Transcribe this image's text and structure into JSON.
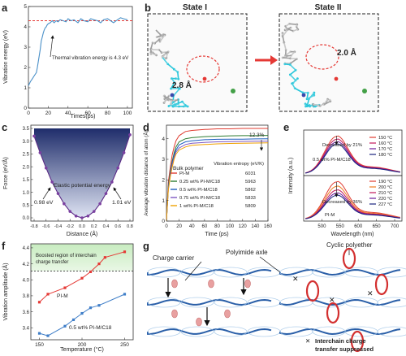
{
  "panels": {
    "a": {
      "label": "a",
      "ylabel": "Vibration energy (eV)",
      "xlabel": "Times(ps)",
      "xticks": [
        "0",
        "20",
        "40",
        "60",
        "80",
        "100"
      ],
      "yticks": [
        "0",
        "1",
        "2",
        "3",
        "4",
        "5"
      ],
      "annotation": "Thermal vibration energy is 4.3 eV"
    },
    "b": {
      "label": "b",
      "state1": "State I",
      "state2": "State II",
      "dist1": "2.8 Å",
      "dist2": "2.0 Å"
    },
    "c": {
      "label": "c",
      "ylabel": "Force (eV/Å)",
      "xlabel": "Distance (Å)",
      "xticks": [
        "-0.8",
        "-0.6",
        "-0.4",
        "-0.2",
        "0.0",
        "0.2",
        "0.4",
        "0.6",
        "0.8"
      ],
      "yticks": [
        "0.0",
        "0.5",
        "1.0",
        "1.5",
        "2.0",
        "2.5",
        "3.0",
        "3.5"
      ],
      "center_label": "Elastic potential energy",
      "left_label": "0.98 eV",
      "right_label": "1.01 eV"
    },
    "d": {
      "label": "d",
      "ylabel": "Average vibration distance of atom (Å)",
      "xlabel": "Time (ps)",
      "xticks": [
        "0",
        "20",
        "40",
        "60",
        "80",
        "100",
        "120",
        "140",
        "160"
      ],
      "yticks": [
        "0",
        "1",
        "2",
        "3",
        "4"
      ],
      "percent": "12.3%",
      "bulk_label": "Bulk polymer",
      "entropy_label": "Vibration entropy (eV/K)",
      "legend": [
        {
          "name": "PI-M",
          "value": "6031",
          "color": "#e03c31"
        },
        {
          "name": "0.25 wt% PI-M/C18",
          "value": "5963",
          "color": "#2e7d32"
        },
        {
          "name": "0.5 wt% PI-M/C18",
          "value": "5862",
          "color": "#1f5fbf"
        },
        {
          "name": "0.75 wt% PI-M/C18",
          "value": "5833",
          "color": "#7e57c2"
        },
        {
          "name": "1 wt% PI-M/C18",
          "value": "5809",
          "color": "#f0a202"
        }
      ]
    },
    "e": {
      "label": "e",
      "ylabel": "Intensity (a.u.)",
      "xlabel": "Wavelength (nm)",
      "xticks": [
        "500",
        "550",
        "600",
        "650",
        "700"
      ],
      "top_note": "Decreased by 21%",
      "top_sample": "0.5 wt% PI-M/C18",
      "top_legend": [
        {
          "name": "150 °C",
          "color": "#e03c31"
        },
        {
          "name": "160 °C",
          "color": "#c2185b"
        },
        {
          "name": "170 °C",
          "color": "#6a1b9a"
        },
        {
          "name": "180 °C",
          "color": "#1a237e"
        }
      ],
      "bottom_note": "Decreased by 36%",
      "bottom_sample": "PI-M",
      "bottom_legend": [
        {
          "name": "190 °C",
          "color": "#e03c31"
        },
        {
          "name": "200 °C",
          "color": "#f07b20"
        },
        {
          "name": "210 °C",
          "color": "#c2185b"
        },
        {
          "name": "220 °C",
          "color": "#6a1b9a"
        },
        {
          "name": "227 °C",
          "color": "#1a237e"
        }
      ]
    },
    "f": {
      "label": "f",
      "ylabel": "Vibration amplitude (Å)",
      "xlabel": "Temperature (°C)",
      "xticks": [
        "150",
        "200",
        "250"
      ],
      "yticks": [
        "3.4",
        "3.6",
        "3.8",
        "4.0",
        "4.2",
        "4.4"
      ],
      "boost_label_1": "Boosted region of interchain",
      "boost_label_2": "charge transfer",
      "series1": "PI-M",
      "series2": "0.5 wt% PI-M/C18"
    },
    "g": {
      "label": "g",
      "charge_carrier": "Charge carrier",
      "axle": "Polyimide axle",
      "polyether": "Cyclic polyether",
      "suppressed_1": "Interchain charge",
      "suppressed_2": "transfer suppressed"
    }
  },
  "chart_data": [
    {
      "type": "line",
      "panel": "a",
      "xlabel": "Times(ps)",
      "ylabel": "Vibration energy (eV)",
      "xlim": [
        0,
        105
      ],
      "ylim": [
        0,
        5
      ],
      "hline": 4.3,
      "series": [
        {
          "name": "",
          "x": [
            0,
            2,
            4,
            6,
            8,
            9,
            10,
            11,
            12,
            13,
            14,
            15,
            16,
            17,
            18,
            19,
            20,
            22,
            24,
            26,
            28,
            30,
            32,
            35,
            38,
            40,
            43,
            46,
            50,
            53,
            56,
            60,
            63,
            66,
            70,
            73,
            76,
            80,
            83,
            86,
            90,
            93,
            96,
            100
          ],
          "y": [
            1.1,
            1.3,
            1.45,
            1.6,
            1.75,
            2.0,
            2.3,
            2.6,
            2.9,
            3.3,
            3.5,
            3.7,
            3.85,
            3.95,
            4.0,
            4.1,
            4.15,
            4.2,
            4.3,
            4.2,
            4.3,
            4.25,
            4.35,
            4.3,
            4.25,
            4.4,
            4.3,
            4.35,
            4.2,
            4.4,
            4.3,
            4.25,
            4.4,
            4.35,
            4.3,
            4.2,
            4.35,
            4.4,
            4.3,
            4.2,
            4.35,
            4.45,
            4.4,
            4.35
          ]
        }
      ]
    },
    {
      "type": "line",
      "panel": "c",
      "xlabel": "Distance (Å)",
      "ylabel": "Force (eV/Å)",
      "xlim": [
        -0.8,
        0.8
      ],
      "ylim": [
        0,
        3.5
      ],
      "series": [
        {
          "name": "",
          "x": [
            -0.8,
            -0.7,
            -0.6,
            -0.5,
            -0.4,
            -0.3,
            -0.2,
            -0.1,
            0.0,
            0.1,
            0.2,
            0.3,
            0.4,
            0.5,
            0.6,
            0.7,
            0.8
          ],
          "y": [
            3.2,
            2.55,
            1.95,
            1.4,
            0.95,
            0.55,
            0.25,
            0.07,
            0.0,
            0.07,
            0.25,
            0.55,
            0.95,
            1.4,
            1.95,
            2.55,
            3.25
          ]
        }
      ]
    },
    {
      "type": "line",
      "panel": "d",
      "xlabel": "Time (ps)",
      "ylabel": "Average vibration distance of atom (Å)",
      "xlim": [
        0,
        160
      ],
      "ylim": [
        0,
        4.5
      ],
      "series": [
        {
          "name": "PI-M",
          "x": [
            0,
            3,
            6,
            9,
            12,
            15,
            20,
            30,
            40,
            60,
            80,
            100,
            120,
            140,
            160
          ],
          "y": [
            0,
            1.9,
            2.6,
            3.2,
            3.6,
            3.9,
            4.15,
            4.35,
            4.4,
            4.45,
            4.48,
            4.48,
            4.5,
            4.5,
            4.5
          ]
        },
        {
          "name": "0.25 wt% PI-M/C18",
          "x": [
            0,
            3,
            6,
            9,
            12,
            15,
            20,
            30,
            40,
            60,
            80,
            100,
            120,
            140,
            160
          ],
          "y": [
            0,
            1.7,
            2.4,
            2.9,
            3.3,
            3.6,
            3.85,
            4.0,
            4.05,
            4.1,
            4.12,
            4.14,
            4.15,
            4.15,
            4.16
          ]
        },
        {
          "name": "0.5 wt% PI-M/C18",
          "x": [
            0,
            3,
            6,
            9,
            12,
            15,
            20,
            30,
            40,
            60,
            80,
            100,
            120,
            140,
            160
          ],
          "y": [
            0,
            1.6,
            2.3,
            2.8,
            3.2,
            3.45,
            3.7,
            3.85,
            3.9,
            3.95,
            3.97,
            3.98,
            3.98,
            3.99,
            4.0
          ]
        },
        {
          "name": "0.75 wt% PI-M/C18",
          "x": [
            0,
            3,
            6,
            9,
            12,
            15,
            20,
            30,
            40,
            60,
            80,
            100,
            120,
            140,
            160
          ],
          "y": [
            0,
            1.55,
            2.2,
            2.7,
            3.1,
            3.35,
            3.55,
            3.72,
            3.78,
            3.82,
            3.85,
            3.86,
            3.87,
            3.88,
            3.88
          ]
        },
        {
          "name": "1 wt% PI-M/C18",
          "x": [
            0,
            3,
            6,
            9,
            12,
            15,
            20,
            30,
            40,
            60,
            80,
            100,
            120,
            140,
            160
          ],
          "y": [
            0,
            1.5,
            2.15,
            2.6,
            3.0,
            3.25,
            3.45,
            3.6,
            3.68,
            3.72,
            3.75,
            3.77,
            3.78,
            3.79,
            3.8
          ]
        }
      ]
    },
    {
      "type": "line",
      "panel": "e",
      "xlabel": "Wavelength (nm)",
      "ylabel": "Intensity (a.u.)",
      "xlim": [
        450,
        720
      ],
      "top": {
        "peaks": [
          1.0,
          0.92,
          0.85,
          0.79
        ],
        "names": [
          "150 °C",
          "160 °C",
          "170 °C",
          "180 °C"
        ],
        "percent_drop": 21
      },
      "bottom": {
        "peaks": [
          1.0,
          0.88,
          0.78,
          0.7,
          0.64
        ],
        "names": [
          "190 °C",
          "200 °C",
          "210 °C",
          "220 °C",
          "227 °C"
        ],
        "percent_drop": 36
      },
      "peak_wavelength": 540
    },
    {
      "type": "line",
      "panel": "f",
      "xlabel": "Temperature (°C)",
      "ylabel": "Vibration amplitude (Å)",
      "xlim": [
        140,
        260
      ],
      "ylim": [
        3.25,
        4.45
      ],
      "threshold": 4.11,
      "series": [
        {
          "name": "PI-M",
          "x": [
            150,
            160,
            180,
            200,
            210,
            220,
            227,
            250
          ],
          "y": [
            3.72,
            3.82,
            3.9,
            4.02,
            4.1,
            4.2,
            4.28,
            4.35
          ]
        },
        {
          "name": "0.5 wt% PI-M/C18",
          "x": [
            150,
            160,
            180,
            190,
            200,
            210,
            220,
            250
          ],
          "y": [
            3.33,
            3.3,
            3.42,
            3.5,
            3.58,
            3.65,
            3.68,
            3.82
          ]
        }
      ]
    }
  ]
}
